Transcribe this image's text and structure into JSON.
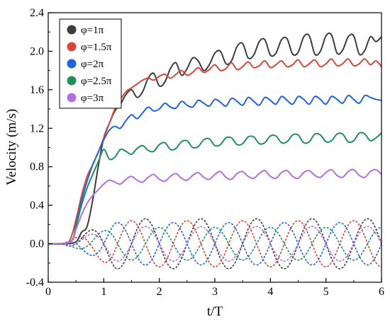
{
  "chart_data": {
    "type": "line",
    "xlabel": "t/T",
    "ylabel": "Velocity (m/s)",
    "xlim": [
      0,
      6
    ],
    "ylim": [
      -0.4,
      2.4
    ],
    "x_ticks": [
      "0",
      "1",
      "2",
      "3",
      "4",
      "5",
      "6"
    ],
    "y_ticks": [
      "-0.4",
      "0.0",
      "0.4",
      "0.8",
      "1.2",
      "1.6",
      "2.0",
      "2.4"
    ],
    "legend_position": "top-left",
    "grid": false,
    "colors": [
      "#3d3d3d",
      "#d9453a",
      "#2062e0",
      "#1f8f5e",
      "#b26fe0"
    ],
    "series": [
      {
        "name": "φ=1π",
        "color": "#3d3d3d",
        "solid_x": [
          0,
          0.3,
          0.5,
          0.6,
          0.7,
          0.8,
          0.9,
          1.0,
          1.1,
          1.2,
          1.3,
          1.4,
          1.5,
          1.6,
          1.7,
          1.8,
          1.9,
          2.0,
          2.1,
          2.2,
          2.3,
          2.4,
          2.5,
          2.6,
          2.7,
          2.8,
          2.9,
          3.0,
          3.1,
          3.2,
          3.3,
          3.4,
          3.5,
          3.6,
          3.7,
          3.8,
          3.9,
          4.0,
          4.1,
          4.2,
          4.3,
          4.4,
          4.5,
          4.6,
          4.7,
          4.8,
          4.9,
          5.0,
          5.1,
          5.2,
          5.3,
          5.4,
          5.5,
          5.6,
          5.7,
          5.8,
          5.9,
          6.0
        ],
        "solid_y": [
          0.0,
          0.0,
          0.02,
          0.12,
          0.18,
          0.45,
          0.8,
          1.1,
          1.25,
          1.38,
          1.45,
          1.55,
          1.6,
          1.52,
          1.58,
          1.72,
          1.77,
          1.64,
          1.68,
          1.82,
          1.88,
          1.75,
          1.82,
          1.93,
          1.9,
          1.8,
          1.86,
          1.98,
          2.0,
          1.87,
          1.9,
          2.05,
          2.08,
          1.93,
          1.96,
          2.1,
          2.12,
          1.96,
          1.98,
          2.12,
          2.13,
          1.97,
          1.99,
          2.15,
          2.16,
          1.97,
          2.0,
          2.16,
          2.17,
          1.98,
          2.01,
          2.15,
          2.16,
          1.97,
          2.01,
          2.15,
          2.1,
          2.15
        ],
        "dashed_amplitude": 0.26,
        "dashed_phase": 3.1416
      },
      {
        "name": "φ=1.5π",
        "color": "#d9453a",
        "solid_x": [
          0,
          0.3,
          0.4,
          0.5,
          0.6,
          0.7,
          0.8,
          0.9,
          1.0,
          1.1,
          1.2,
          1.3,
          1.4,
          1.5,
          1.6,
          1.7,
          1.8,
          1.9,
          2.0,
          2.1,
          2.2,
          2.3,
          2.4,
          2.5,
          2.6,
          2.7,
          2.8,
          2.9,
          3.0,
          3.1,
          3.2,
          3.3,
          3.4,
          3.5,
          3.6,
          3.7,
          3.8,
          3.9,
          4.0,
          4.1,
          4.2,
          4.3,
          4.4,
          4.5,
          4.6,
          4.7,
          4.8,
          4.9,
          5.0,
          5.1,
          5.2,
          5.3,
          5.4,
          5.5,
          5.6,
          5.7,
          5.8,
          5.9,
          6.0
        ],
        "solid_y": [
          0.0,
          0.0,
          0.05,
          0.25,
          0.5,
          0.7,
          0.82,
          0.95,
          1.1,
          1.25,
          1.4,
          1.5,
          1.58,
          1.62,
          1.66,
          1.7,
          1.72,
          1.7,
          1.74,
          1.76,
          1.72,
          1.76,
          1.8,
          1.75,
          1.78,
          1.83,
          1.78,
          1.81,
          1.86,
          1.8,
          1.82,
          1.88,
          1.81,
          1.84,
          1.89,
          1.83,
          1.85,
          1.9,
          1.83,
          1.86,
          1.9,
          1.84,
          1.86,
          1.91,
          1.84,
          1.87,
          1.91,
          1.84,
          1.87,
          1.92,
          1.85,
          1.87,
          1.92,
          1.85,
          1.87,
          1.92,
          1.86,
          1.9,
          1.84
        ],
        "dashed_amplitude": 0.24,
        "dashed_phase": 4.7124
      },
      {
        "name": "φ=2π",
        "color": "#2062e0",
        "solid_x": [
          0,
          0.4,
          0.5,
          0.6,
          0.7,
          0.8,
          0.9,
          1.0,
          1.1,
          1.2,
          1.3,
          1.4,
          1.5,
          1.6,
          1.7,
          1.8,
          1.9,
          2.0,
          2.1,
          2.2,
          2.3,
          2.4,
          2.5,
          2.6,
          2.7,
          2.8,
          2.9,
          3.0,
          3.1,
          3.2,
          3.3,
          3.4,
          3.5,
          3.6,
          3.7,
          3.8,
          3.9,
          4.0,
          4.1,
          4.2,
          4.3,
          4.4,
          4.5,
          4.6,
          4.7,
          4.8,
          4.9,
          5.0,
          5.1,
          5.2,
          5.3,
          5.4,
          5.5,
          5.6,
          5.7,
          5.8,
          5.9,
          6.0
        ],
        "solid_y": [
          0.0,
          0.02,
          0.2,
          0.45,
          0.65,
          0.82,
          0.95,
          1.08,
          1.18,
          1.22,
          1.2,
          1.28,
          1.34,
          1.3,
          1.36,
          1.42,
          1.38,
          1.4,
          1.46,
          1.42,
          1.41,
          1.48,
          1.44,
          1.42,
          1.49,
          1.46,
          1.43,
          1.5,
          1.47,
          1.43,
          1.51,
          1.48,
          1.44,
          1.52,
          1.48,
          1.44,
          1.52,
          1.49,
          1.45,
          1.53,
          1.49,
          1.45,
          1.53,
          1.5,
          1.45,
          1.53,
          1.5,
          1.45,
          1.53,
          1.5,
          1.46,
          1.54,
          1.5,
          1.46,
          1.54,
          1.52,
          1.5,
          1.49
        ],
        "dashed_amplitude": 0.22,
        "dashed_phase": 0.0
      },
      {
        "name": "φ=2.5π",
        "color": "#1f8f5e",
        "solid_x": [
          0,
          0.4,
          0.5,
          0.6,
          0.7,
          0.8,
          0.9,
          1.0,
          1.1,
          1.2,
          1.3,
          1.4,
          1.5,
          1.6,
          1.7,
          1.8,
          1.9,
          2.0,
          2.1,
          2.2,
          2.3,
          2.4,
          2.5,
          2.6,
          2.7,
          2.8,
          2.9,
          3.0,
          3.1,
          3.2,
          3.3,
          3.4,
          3.5,
          3.6,
          3.7,
          3.8,
          3.9,
          4.0,
          4.1,
          4.2,
          4.3,
          4.4,
          4.5,
          4.6,
          4.7,
          4.8,
          4.9,
          5.0,
          5.1,
          5.2,
          5.3,
          5.4,
          5.5,
          5.6,
          5.7,
          5.8,
          5.9,
          6.0
        ],
        "solid_y": [
          0.0,
          0.02,
          0.18,
          0.4,
          0.58,
          0.72,
          0.85,
          0.98,
          0.88,
          0.9,
          0.98,
          0.96,
          0.93,
          0.99,
          1.02,
          0.97,
          0.96,
          1.03,
          1.05,
          0.98,
          0.99,
          1.06,
          1.07,
          1.0,
          1.01,
          1.08,
          1.09,
          1.02,
          1.03,
          1.1,
          1.1,
          1.03,
          1.04,
          1.11,
          1.11,
          1.04,
          1.05,
          1.12,
          1.12,
          1.05,
          1.06,
          1.13,
          1.13,
          1.05,
          1.06,
          1.14,
          1.13,
          1.06,
          1.07,
          1.14,
          1.14,
          1.06,
          1.07,
          1.15,
          1.14,
          1.07,
          1.1,
          1.15
        ],
        "dashed_amplitude": 0.17,
        "dashed_phase": 1.5708
      },
      {
        "name": "φ=3π",
        "color": "#b26fe0",
        "solid_x": [
          0,
          0.4,
          0.5,
          0.6,
          0.7,
          0.8,
          0.9,
          1.0,
          1.1,
          1.2,
          1.3,
          1.4,
          1.5,
          1.6,
          1.7,
          1.8,
          1.9,
          2.0,
          2.1,
          2.2,
          2.3,
          2.4,
          2.5,
          2.6,
          2.7,
          2.8,
          2.9,
          3.0,
          3.1,
          3.2,
          3.3,
          3.4,
          3.5,
          3.6,
          3.7,
          3.8,
          3.9,
          4.0,
          4.1,
          4.2,
          4.3,
          4.4,
          4.5,
          4.6,
          4.7,
          4.8,
          4.9,
          5.0,
          5.1,
          5.2,
          5.3,
          5.4,
          5.5,
          5.6,
          5.7,
          5.8,
          5.9,
          6.0
        ],
        "solid_y": [
          0.0,
          0.02,
          0.15,
          0.3,
          0.42,
          0.5,
          0.56,
          0.62,
          0.66,
          0.64,
          0.62,
          0.67,
          0.7,
          0.66,
          0.64,
          0.69,
          0.72,
          0.67,
          0.65,
          0.7,
          0.73,
          0.68,
          0.66,
          0.71,
          0.74,
          0.69,
          0.67,
          0.72,
          0.75,
          0.69,
          0.67,
          0.73,
          0.75,
          0.7,
          0.68,
          0.73,
          0.76,
          0.7,
          0.68,
          0.74,
          0.76,
          0.7,
          0.68,
          0.74,
          0.76,
          0.71,
          0.69,
          0.74,
          0.77,
          0.71,
          0.69,
          0.75,
          0.77,
          0.71,
          0.69,
          0.75,
          0.77,
          0.72
        ],
        "dashed_amplitude": 0.18,
        "dashed_phase": 3.1416
      }
    ],
    "dashed_oscillation_period": 1.0
  }
}
